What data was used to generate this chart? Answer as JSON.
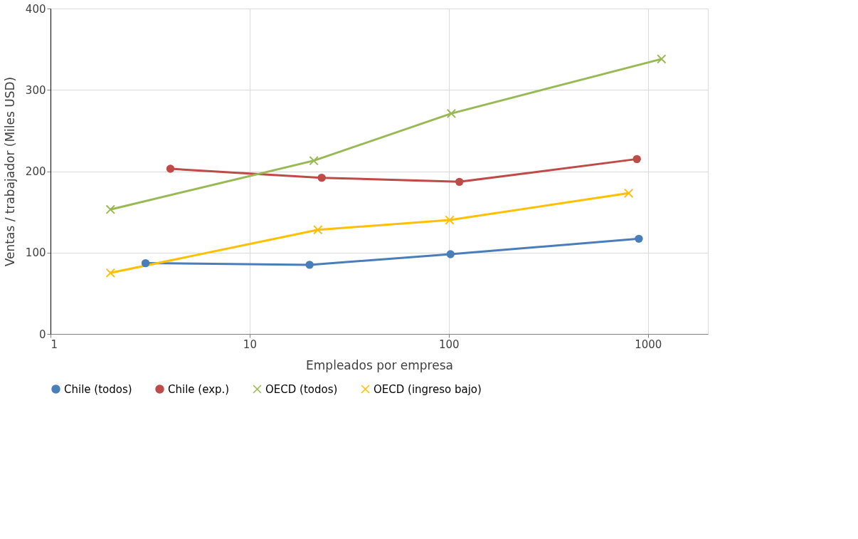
{
  "chart_data": {
    "type": "line",
    "xlabel": "Empleados por empresa",
    "ylabel": "Ventas / trabajador (Miles USD)",
    "log": "x",
    "xlim": [
      1,
      2000
    ],
    "xticks": [
      1,
      10,
      100,
      1000
    ],
    "ylim": [
      0,
      400
    ],
    "yticks": [
      0,
      100,
      200,
      300,
      400
    ],
    "grid": true,
    "legend": "bottom",
    "line_style": "solid",
    "series": [
      {
        "name": "Chile (todos)",
        "color": "#4a7ebb",
        "marker": "circle",
        "x": [
          3,
          20,
          102,
          900
        ],
        "values": [
          87,
          85,
          98,
          117
        ]
      },
      {
        "name": "Chile (exp.)",
        "color": "#be4b48",
        "marker": "circle",
        "x": [
          4,
          23,
          113,
          880
        ],
        "values": [
          203,
          192,
          187,
          215
        ]
      },
      {
        "name": "OECD (todos)",
        "color": "#98b954",
        "marker": "cross",
        "x": [
          2,
          21,
          103,
          1170
        ],
        "values": [
          153,
          213,
          271,
          338
        ]
      },
      {
        "name": "OECD (ingreso bajo)",
        "color": "#ffc000",
        "marker": "cross",
        "x": [
          2,
          22,
          101,
          800
        ],
        "values": [
          75,
          128,
          140,
          173
        ]
      }
    ]
  }
}
